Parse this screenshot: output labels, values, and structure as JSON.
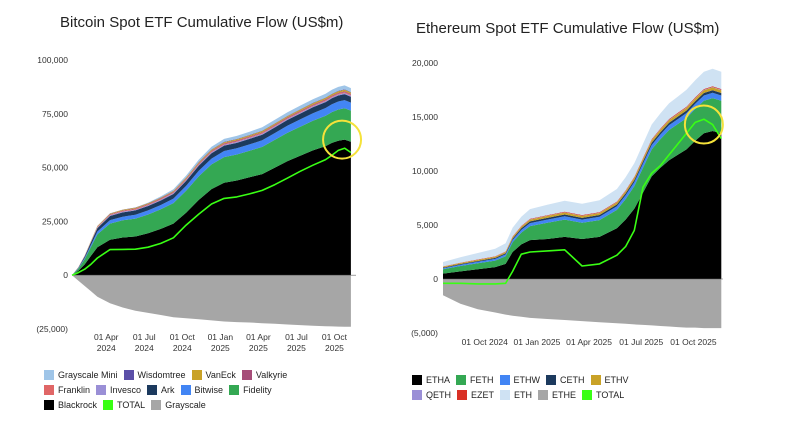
{
  "chart_data": [
    {
      "type": "area",
      "title": "Bitcoin Spot ETF Cumulative Flow (US$m)",
      "ylim": [
        -25000,
        100000
      ],
      "yticks": [
        "100,000",
        "75,000",
        "50,000",
        "25,000",
        "0",
        "(25,000)"
      ],
      "xticks": [
        [
          "01 Apr",
          "2024"
        ],
        [
          "01 Jul",
          "2024"
        ],
        [
          "01 Oct",
          "2024"
        ],
        [
          "01 Jan",
          "2025"
        ],
        [
          "01 Apr",
          "2025"
        ],
        [
          "01 Jul",
          "2025"
        ],
        [
          "01 Oct",
          "2025"
        ]
      ],
      "xtick_pos": [
        2.7,
        5.7,
        8.7,
        11.7,
        14.7,
        17.7,
        20.7
      ],
      "x_range": [
        0,
        22.4
      ],
      "x": [
        0,
        0.5,
        1,
        1.5,
        2,
        3,
        4,
        5,
        6,
        7,
        8,
        9,
        10,
        11,
        12,
        13,
        14,
        15,
        16,
        17,
        18,
        19,
        20,
        20.5,
        21,
        21.5,
        22
      ],
      "series": [
        {
          "name": "Blackrock",
          "color": "#000000",
          "values": [
            0,
            2000,
            5000,
            9000,
            13000,
            16500,
            17500,
            18000,
            19500,
            21500,
            24000,
            29000,
            35000,
            40000,
            43000,
            44000,
            45500,
            47000,
            50000,
            53000,
            55500,
            58000,
            60000,
            61500,
            62500,
            63000,
            62000
          ]
        },
        {
          "name": "Fidelity",
          "color": "#34a853",
          "values": [
            0,
            1000,
            2500,
            4200,
            6000,
            7500,
            8000,
            8300,
            8700,
            9100,
            9500,
            10200,
            11000,
            11500,
            11900,
            12100,
            12300,
            12600,
            12900,
            13200,
            13500,
            13800,
            14100,
            14300,
            14500,
            14600,
            14500
          ]
        },
        {
          "name": "Bitwise",
          "color": "#4285f4",
          "values": [
            0,
            200,
            500,
            900,
            1300,
            1600,
            1700,
            1800,
            1900,
            2000,
            2100,
            2300,
            2500,
            2700,
            2800,
            2900,
            3000,
            3100,
            3200,
            3300,
            3400,
            3500,
            3600,
            3650,
            3700,
            3750,
            3700
          ]
        },
        {
          "name": "Ark",
          "color": "#1c3a5e",
          "values": [
            0,
            300,
            700,
            1200,
            1600,
            1900,
            2000,
            2000,
            2050,
            2100,
            2150,
            2300,
            2450,
            2500,
            2500,
            2500,
            2550,
            2600,
            2600,
            2650,
            2700,
            2700,
            2750,
            2750,
            2800,
            2800,
            2750
          ]
        },
        {
          "name": "Invesco",
          "color": "#9a8fd6",
          "values": [
            0,
            50,
            120,
            200,
            280,
            330,
            350,
            360,
            370,
            380,
            390,
            400,
            410,
            420,
            430,
            430,
            440,
            450,
            450,
            460,
            470,
            480,
            490,
            490,
            500,
            500,
            500
          ]
        },
        {
          "name": "Franklin",
          "color": "#e06666",
          "values": [
            0,
            40,
            90,
            150,
            210,
            250,
            270,
            280,
            290,
            300,
            310,
            320,
            330,
            340,
            350,
            355,
            360,
            365,
            370,
            380,
            390,
            400,
            410,
            415,
            420,
            425,
            420
          ]
        },
        {
          "name": "Valkyrie",
          "color": "#a64d79",
          "values": [
            0,
            40,
            90,
            150,
            210,
            250,
            260,
            270,
            280,
            290,
            300,
            310,
            320,
            330,
            340,
            345,
            350,
            355,
            360,
            365,
            370,
            375,
            380,
            385,
            390,
            395,
            390
          ]
        },
        {
          "name": "VanEck",
          "color": "#c9a227",
          "values": [
            0,
            50,
            110,
            180,
            250,
            300,
            320,
            330,
            340,
            360,
            380,
            420,
            460,
            480,
            500,
            510,
            520,
            540,
            560,
            580,
            600,
            620,
            640,
            650,
            660,
            670,
            660
          ]
        },
        {
          "name": "Wisdomtree",
          "color": "#5b4fa8",
          "values": [
            0,
            10,
            30,
            50,
            70,
            90,
            100,
            110,
            120,
            130,
            140,
            150,
            160,
            170,
            180,
            185,
            190,
            195,
            200,
            205,
            210,
            215,
            220,
            222,
            225,
            228,
            225
          ]
        },
        {
          "name": "Grayscale Mini",
          "color": "#9fc5e8",
          "values": [
            0,
            0,
            0,
            0,
            0,
            0,
            0,
            0,
            200,
            450,
            700,
            900,
            1100,
            1250,
            1350,
            1400,
            1450,
            1500,
            1550,
            1600,
            1650,
            1700,
            1750,
            1770,
            1800,
            1820,
            1800
          ]
        },
        {
          "name": "Grayscale",
          "color": "#a6a6a6",
          "values": [
            0,
            -2500,
            -5000,
            -7500,
            -10000,
            -13000,
            -15000,
            -16500,
            -17500,
            -18500,
            -19500,
            -20000,
            -20500,
            -21000,
            -21500,
            -21800,
            -22000,
            -22300,
            -22600,
            -22900,
            -23200,
            -23500,
            -23700,
            -23800,
            -23900,
            -24000,
            -24000
          ]
        }
      ],
      "total": {
        "name": "TOTAL",
        "color": "#39ff14",
        "values": [
          0,
          1200,
          2800,
          5100,
          8000,
          11900,
          12000,
          12100,
          13000,
          14800,
          17400,
          23300,
          28400,
          33100,
          35700,
          36400,
          37800,
          39400,
          42100,
          45100,
          48300,
          51100,
          53700,
          55700,
          58000,
          59000,
          57000
        ]
      },
      "legend": [
        [
          "Grayscale Mini",
          "Wisdomtree",
          "VanEck",
          "Valkyrie"
        ],
        [
          "Franklin",
          "Invesco",
          "Ark",
          "Bitwise",
          "Fidelity"
        ],
        [
          "Blackrock",
          "TOTAL",
          "Grayscale"
        ]
      ],
      "highlight_circle": {
        "x": 21.3,
        "y": 63000,
        "color": "#f5e23a"
      },
      "grid": false
    },
    {
      "type": "area",
      "title": "Ethereum Spot ETF Cumulative Flow (US$m)",
      "ylim": [
        -5000,
        20000
      ],
      "yticks": [
        "20,000",
        "15,000",
        "10,000",
        "5,000",
        "0",
        "(5,000)"
      ],
      "xticks": [
        [
          "01 Oct 2024"
        ],
        [
          "01 Jan 2025"
        ],
        [
          "01 Apr 2025"
        ],
        [
          "01 Jul 2025"
        ],
        [
          "01 Oct 2025"
        ]
      ],
      "xtick_pos": [
        2.4,
        5.4,
        8.4,
        11.4,
        14.4
      ],
      "x_range": [
        0,
        16.1
      ],
      "x": [
        0,
        1,
        2,
        3,
        3.6,
        4,
        4.5,
        5,
        6,
        7,
        8,
        9,
        10,
        10.5,
        11,
        11.5,
        12,
        12.5,
        13,
        13.5,
        14,
        14.5,
        15,
        15.5,
        16
      ],
      "series": [
        {
          "name": "ETHA",
          "color": "#000000",
          "values": [
            500,
            700,
            900,
            1100,
            1400,
            2500,
            3200,
            3600,
            3700,
            3900,
            3700,
            3900,
            4700,
            5500,
            6500,
            8000,
            9500,
            10300,
            11000,
            11500,
            12000,
            12800,
            13500,
            13700,
            13500
          ]
        },
        {
          "name": "FETH",
          "color": "#34a853",
          "values": [
            400,
            500,
            550,
            600,
            700,
            900,
            1100,
            1300,
            1500,
            1600,
            1500,
            1550,
            1700,
            1900,
            2100,
            2300,
            2500,
            2650,
            2800,
            2850,
            2900,
            2950,
            3000,
            3050,
            3000
          ]
        },
        {
          "name": "ETHW",
          "color": "#4285f4",
          "values": [
            100,
            120,
            140,
            160,
            180,
            220,
            250,
            280,
            300,
            310,
            300,
            310,
            330,
            350,
            370,
            390,
            410,
            430,
            450,
            460,
            470,
            480,
            490,
            495,
            490
          ]
        },
        {
          "name": "CETH",
          "color": "#1c3a5e",
          "values": [
            60,
            70,
            80,
            90,
            100,
            120,
            140,
            150,
            160,
            165,
            160,
            165,
            170,
            180,
            190,
            200,
            210,
            215,
            220,
            225,
            230,
            232,
            235,
            237,
            235
          ]
        },
        {
          "name": "ETHV",
          "color": "#c9a227",
          "values": [
            80,
            90,
            100,
            110,
            120,
            140,
            160,
            170,
            180,
            185,
            180,
            185,
            190,
            200,
            210,
            220,
            230,
            235,
            240,
            245,
            250,
            252,
            255,
            257,
            255
          ]
        },
        {
          "name": "QETH",
          "color": "#9a8fd6",
          "values": [
            10,
            12,
            14,
            16,
            18,
            20,
            22,
            24,
            26,
            28,
            28,
            29,
            30,
            31,
            32,
            33,
            34,
            35,
            36,
            37,
            38,
            38,
            39,
            39,
            39
          ]
        },
        {
          "name": "EZET",
          "color": "#d93025",
          "values": [
            20,
            24,
            28,
            32,
            36,
            40,
            44,
            48,
            52,
            56,
            56,
            58,
            60,
            62,
            64,
            66,
            68,
            70,
            72,
            74,
            76,
            76,
            78,
            78,
            78
          ]
        },
        {
          "name": "ETH",
          "color": "#cfe2f3",
          "values": [
            400,
            500,
            600,
            700,
            750,
            800,
            850,
            900,
            950,
            1000,
            1050,
            1100,
            1150,
            1200,
            1250,
            1300,
            1350,
            1400,
            1450,
            1500,
            1550,
            1580,
            1600,
            1620,
            1600
          ]
        },
        {
          "name": "ETHE",
          "color": "#a6a6a6",
          "values": [
            -1500,
            -2300,
            -2800,
            -3100,
            -3300,
            -3400,
            -3500,
            -3600,
            -3700,
            -3800,
            -3900,
            -4000,
            -4100,
            -4150,
            -4200,
            -4250,
            -4300,
            -4350,
            -4400,
            -4450,
            -4500,
            -4500,
            -4550,
            -4550,
            -4550
          ]
        }
      ],
      "total": {
        "name": "TOTAL",
        "color": "#39ff14",
        "values": [
          -400,
          -400,
          -450,
          -450,
          -400,
          700,
          2300,
          2500,
          2600,
          2700,
          1200,
          1400,
          2200,
          3000,
          4500,
          8500,
          9800,
          10500,
          11500,
          12500,
          13500,
          14500,
          14800,
          14300,
          13000
        ]
      },
      "legend": [
        [
          "ETHA",
          "FETH",
          "ETHW",
          "CETH",
          "ETHV"
        ],
        [
          "QETH",
          "EZET",
          "ETH",
          "ETHE",
          "TOTAL"
        ]
      ],
      "highlight_circle": {
        "x": 15,
        "y": 14300,
        "color": "#f5e23a"
      },
      "grid": false
    }
  ]
}
